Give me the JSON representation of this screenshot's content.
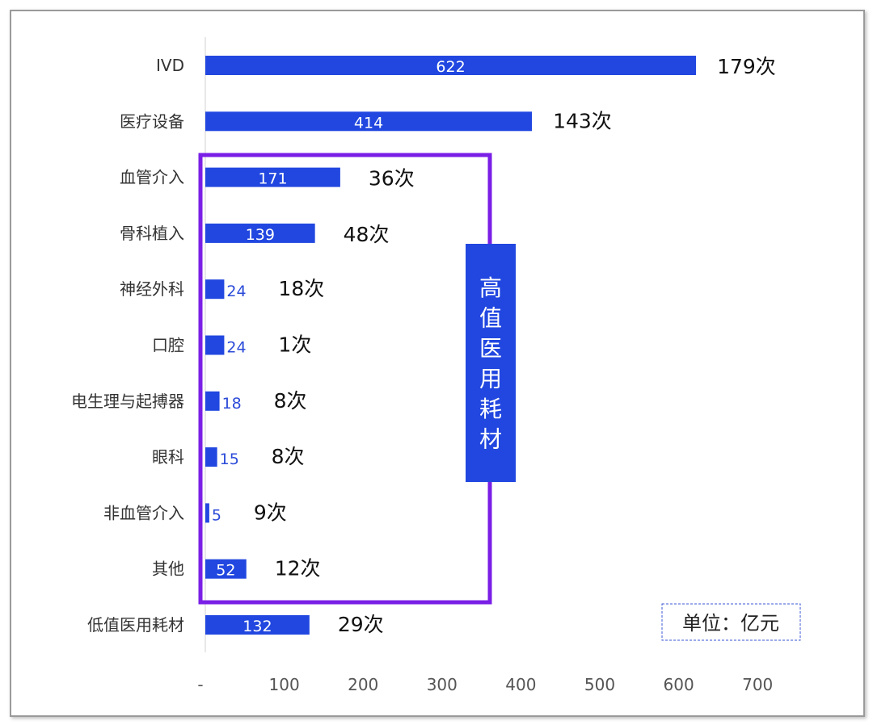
{
  "chart_data": {
    "type": "bar",
    "orientation": "horizontal",
    "categories": [
      "IVD",
      "医疗设备",
      "血管介入",
      "骨科植入",
      "神经外科",
      "口腔",
      "电生理与起搏器",
      "眼科",
      "非血管介入",
      "其他",
      "低值医用耗材"
    ],
    "values": [
      622,
      414,
      171,
      139,
      24,
      24,
      18,
      15,
      5,
      52,
      132
    ],
    "value_labels": [
      "622",
      "414",
      "171",
      "139",
      "24",
      "24",
      "18",
      "15",
      "5",
      "52",
      "132"
    ],
    "counts": [
      "179次",
      "143次",
      "36次",
      "48次",
      "18次",
      "1次",
      "8次",
      "8次",
      "9次",
      "12次",
      "29次"
    ],
    "xlim": [
      0,
      700
    ],
    "xticks": [
      "-",
      "100",
      "200",
      "300",
      "400",
      "500",
      "600",
      "700"
    ],
    "grid": false,
    "bar_color": "#2147e0",
    "highlight": {
      "label": "高值医用耗材",
      "label_chars": [
        "高",
        "值",
        "医",
        "用",
        "耗",
        "材"
      ],
      "categories": [
        "血管介入",
        "骨科植入",
        "神经外科",
        "口腔",
        "电生理与起搏器",
        "眼科",
        "非血管介入",
        "其他"
      ],
      "frame_color": "#7a1fe6",
      "label_bg": "#2147e0"
    },
    "unit_note": "单位：亿元"
  }
}
